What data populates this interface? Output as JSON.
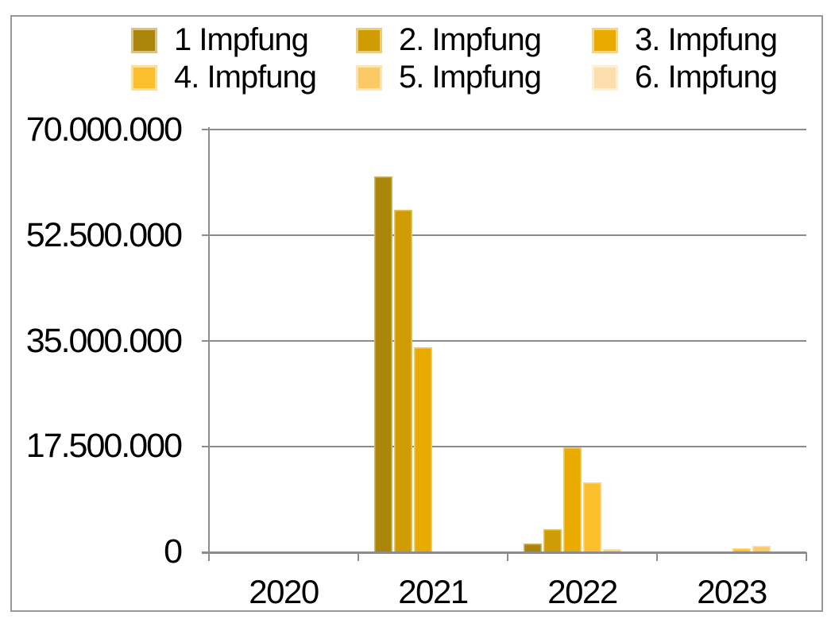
{
  "chart_data": {
    "type": "bar",
    "title": "",
    "categories": [
      "2020",
      "2021",
      "2022",
      "2023"
    ],
    "series": [
      {
        "name": "1 Impfung",
        "color": "#AC860A",
        "values": [
          0,
          62200000,
          1400000,
          0
        ]
      },
      {
        "name": "2. Impfung",
        "color": "#CF9D03",
        "values": [
          0,
          56700000,
          3800000,
          0
        ]
      },
      {
        "name": "3. Impfung",
        "color": "#EAAB00",
        "values": [
          0,
          33900000,
          17400000,
          0
        ]
      },
      {
        "name": "4. Impfung",
        "color": "#FBBF2D",
        "values": [
          0,
          0,
          11600000,
          700000
        ]
      },
      {
        "name": "5. Impfung",
        "color": "#FBCA67",
        "values": [
          0,
          0,
          500000,
          1000000
        ]
      },
      {
        "name": "6. Impfung",
        "color": "#FCDEAC",
        "values": [
          0,
          0,
          0,
          0
        ]
      }
    ],
    "ylim": [
      0,
      70000000
    ],
    "ytick_step": 17500000,
    "ytick_labels": [
      "0",
      "17.500.000",
      "35.000.000",
      "52.500.000",
      "70.000.000"
    ],
    "xlabel": "",
    "ylabel": "",
    "grid": true,
    "legend_position": "top",
    "colors": {
      "grid": "#8c8c8c",
      "axis": "#8c8c8c",
      "frame_border": "#989898",
      "text": "#000000",
      "background": "#ffffff"
    }
  }
}
